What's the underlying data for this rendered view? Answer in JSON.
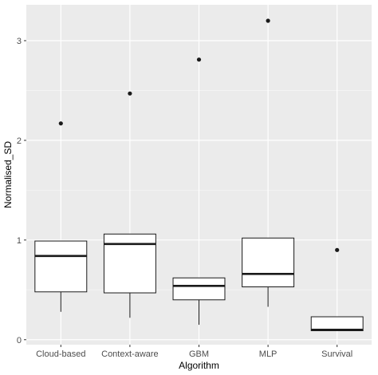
{
  "chart_data": {
    "type": "box",
    "xlabel": "Algorithm",
    "ylabel": "Normalised_SD",
    "categories": [
      "Cloud-based",
      "Context-aware",
      "GBM",
      "MLP",
      "Survival"
    ],
    "boxes": [
      {
        "min": 0.28,
        "q1": 0.48,
        "median": 0.84,
        "q3": 0.99,
        "max": 0.99,
        "outliers": [
          2.17
        ]
      },
      {
        "min": 0.22,
        "q1": 0.47,
        "median": 0.96,
        "q3": 1.06,
        "max": 1.06,
        "outliers": [
          2.47
        ]
      },
      {
        "min": 0.15,
        "q1": 0.4,
        "median": 0.54,
        "q3": 0.62,
        "max": 0.62,
        "outliers": [
          2.81
        ]
      },
      {
        "min": 0.33,
        "q1": 0.53,
        "median": 0.66,
        "q3": 1.02,
        "max": 1.02,
        "outliers": [
          3.2
        ]
      },
      {
        "min": 0.09,
        "q1": 0.09,
        "median": 0.1,
        "q3": 0.23,
        "max": 0.23,
        "outliers": [
          0.9
        ]
      }
    ],
    "ylim": [
      -0.05,
      3.36
    ],
    "yticks": [
      0,
      1,
      2,
      3
    ],
    "grid": true,
    "colors": {
      "panel": "#ebebeb",
      "grid_major": "#ffffff",
      "box_fill": "#ffffff",
      "line": "#1a1a1a"
    }
  }
}
